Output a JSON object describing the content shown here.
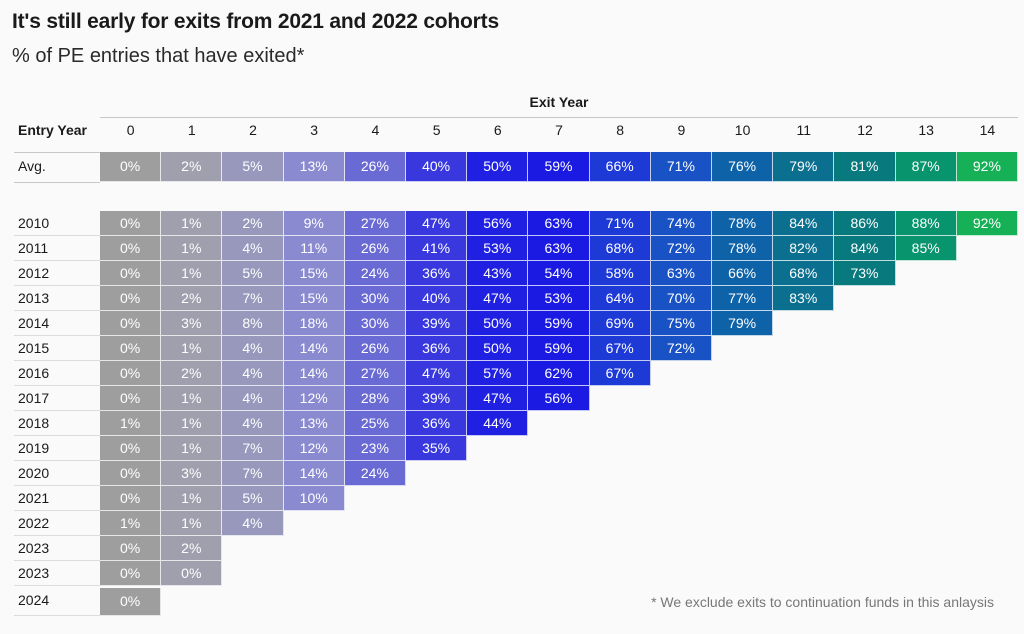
{
  "title": "It's still early for exits from 2021 and 2022 cohorts",
  "subtitle": "% of PE entries that have exited*",
  "footnote": "* We exclude exits to continuation funds in this anlaysis",
  "chart_data": {
    "type": "heatmap",
    "title": "It's still early for exits from 2021 and 2022 cohorts",
    "subtitle": "% of PE entries that have exited*",
    "xlabel": "Exit Year",
    "ylabel": "Entry Year",
    "columns": [
      "0",
      "1",
      "2",
      "3",
      "4",
      "5",
      "6",
      "7",
      "8",
      "9",
      "10",
      "11",
      "12",
      "13",
      "14"
    ],
    "average": {
      "label": "Avg.",
      "values": [
        "0%",
        "2%",
        "5%",
        "13%",
        "26%",
        "40%",
        "50%",
        "59%",
        "66%",
        "71%",
        "76%",
        "79%",
        "81%",
        "87%",
        "92%"
      ]
    },
    "rows": [
      {
        "label": "2010",
        "values": [
          "0%",
          "1%",
          "2%",
          "9%",
          "27%",
          "47%",
          "56%",
          "63%",
          "71%",
          "74%",
          "78%",
          "84%",
          "86%",
          "88%",
          "92%"
        ]
      },
      {
        "label": "2011",
        "values": [
          "0%",
          "1%",
          "4%",
          "11%",
          "26%",
          "41%",
          "53%",
          "63%",
          "68%",
          "72%",
          "78%",
          "82%",
          "84%",
          "85%"
        ]
      },
      {
        "label": "2012",
        "values": [
          "0%",
          "1%",
          "5%",
          "15%",
          "24%",
          "36%",
          "43%",
          "54%",
          "58%",
          "63%",
          "66%",
          "68%",
          "73%"
        ]
      },
      {
        "label": "2013",
        "values": [
          "0%",
          "2%",
          "7%",
          "15%",
          "30%",
          "40%",
          "47%",
          "53%",
          "64%",
          "70%",
          "77%",
          "83%"
        ]
      },
      {
        "label": "2014",
        "values": [
          "0%",
          "3%",
          "8%",
          "18%",
          "30%",
          "39%",
          "50%",
          "59%",
          "69%",
          "75%",
          "79%"
        ]
      },
      {
        "label": "2015",
        "values": [
          "0%",
          "1%",
          "4%",
          "14%",
          "26%",
          "36%",
          "50%",
          "59%",
          "67%",
          "72%"
        ]
      },
      {
        "label": "2016",
        "values": [
          "0%",
          "2%",
          "4%",
          "14%",
          "27%",
          "47%",
          "57%",
          "62%",
          "67%"
        ]
      },
      {
        "label": "2017",
        "values": [
          "0%",
          "1%",
          "4%",
          "12%",
          "28%",
          "39%",
          "47%",
          "56%"
        ]
      },
      {
        "label": "2018",
        "values": [
          "1%",
          "1%",
          "4%",
          "13%",
          "25%",
          "36%",
          "44%"
        ]
      },
      {
        "label": "2019",
        "values": [
          "0%",
          "1%",
          "7%",
          "12%",
          "23%",
          "35%"
        ]
      },
      {
        "label": "2020",
        "values": [
          "0%",
          "3%",
          "7%",
          "14%",
          "24%"
        ]
      },
      {
        "label": "2021",
        "values": [
          "0%",
          "1%",
          "5%",
          "10%"
        ]
      },
      {
        "label": "2022",
        "values": [
          "1%",
          "1%",
          "4%"
        ]
      },
      {
        "label": "2023",
        "values": [
          "0%",
          "2%"
        ]
      },
      {
        "label": "2023",
        "values": [
          "0%",
          "0%"
        ]
      },
      {
        "label": "2024",
        "values": [
          "0%"
        ]
      }
    ],
    "column_colors": [
      "#9e9e9e",
      "#9f9fae",
      "#9898bd",
      "#8a8ad0",
      "#6a6ad4",
      "#3838de",
      "#2020e3",
      "#1a1ae3",
      "#1d39d6",
      "#1852c4",
      "#0d62a8",
      "#0b708f",
      "#087a7d",
      "#08946c",
      "#16b157"
    ]
  }
}
